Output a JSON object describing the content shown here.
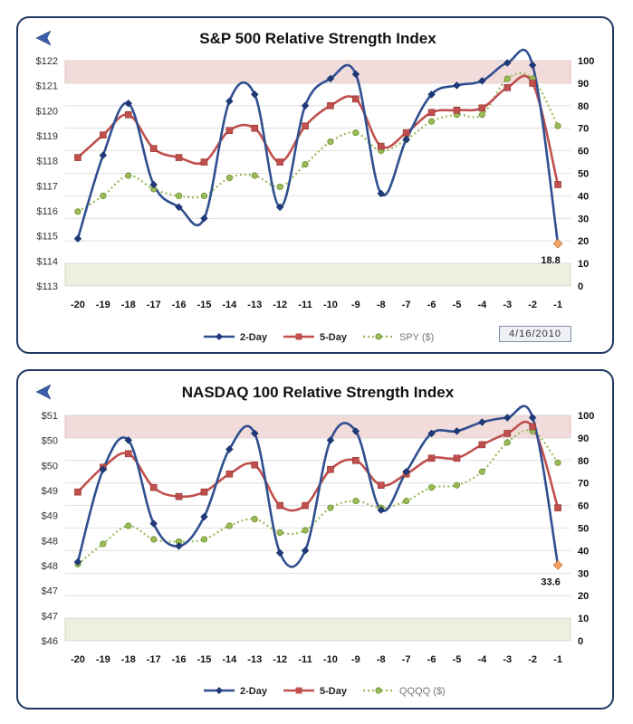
{
  "chart_data": [
    {
      "type": "line",
      "title": "S&P 500 Relative Strength Index",
      "categories": [
        "-20",
        "-19",
        "-18",
        "-17",
        "-16",
        "-15",
        "-14",
        "-13",
        "-12",
        "-11",
        "-10",
        "-9",
        "-8",
        "-7",
        "-6",
        "-5",
        "-4",
        "-3",
        "-2",
        "-1"
      ],
      "left_axis": {
        "range": [
          113,
          122
        ],
        "ticks": [
          "$113",
          "$114",
          "$115",
          "$116",
          "$117",
          "$118",
          "$119",
          "$120",
          "$121",
          "$122"
        ]
      },
      "right_axis": {
        "range": [
          0,
          100
        ],
        "ticks": [
          "0",
          "10",
          "20",
          "30",
          "40",
          "50",
          "60",
          "70",
          "80",
          "90",
          "100"
        ]
      },
      "overbought_band": [
        90,
        100
      ],
      "oversold_band": [
        0,
        10
      ],
      "series": [
        {
          "name": "2-Day",
          "values": [
            21,
            58,
            81,
            45,
            35,
            30,
            82,
            85,
            35,
            80,
            92,
            94,
            41,
            65,
            85,
            89,
            91,
            99,
            98,
            18.8
          ]
        },
        {
          "name": "5-Day",
          "values": [
            57,
            67,
            76,
            61,
            57,
            55,
            69,
            70,
            55,
            71,
            80,
            83,
            62,
            68,
            77,
            78,
            79,
            88,
            90,
            45
          ]
        },
        {
          "name": "SPY ($)",
          "values": [
            33,
            40,
            49,
            43,
            40,
            40,
            48,
            49,
            44,
            54,
            64,
            68,
            60,
            65,
            73,
            76,
            76,
            92,
            92,
            71
          ]
        }
      ],
      "annotation": "18.8",
      "date": "4/16/2010"
    },
    {
      "type": "line",
      "title": "NASDAQ 100 Relative Strength Index",
      "categories": [
        "-20",
        "-19",
        "-18",
        "-17",
        "-16",
        "-15",
        "-14",
        "-13",
        "-12",
        "-11",
        "-10",
        "-9",
        "-8",
        "-7",
        "-6",
        "-5",
        "-4",
        "-3",
        "-2",
        "-1"
      ],
      "left_axis": {
        "range": [
          46,
          51
        ],
        "ticks": [
          "$46",
          "$47",
          "$47",
          "$48",
          "$48",
          "$49",
          "$49",
          "$50",
          "$50",
          "$51"
        ]
      },
      "right_axis": {
        "range": [
          0,
          100
        ],
        "ticks": [
          "0",
          "10",
          "20",
          "30",
          "40",
          "50",
          "60",
          "70",
          "80",
          "90",
          "100"
        ]
      },
      "overbought_band": [
        90,
        100
      ],
      "oversold_band": [
        0,
        10
      ],
      "series": [
        {
          "name": "2-Day",
          "values": [
            35,
            76,
            89,
            52,
            42,
            55,
            85,
            92,
            39,
            40,
            89,
            93,
            58,
            75,
            92,
            93,
            97,
            99,
            99,
            33.6
          ]
        },
        {
          "name": "5-Day",
          "values": [
            66,
            77,
            83,
            68,
            64,
            66,
            74,
            78,
            60,
            60,
            76,
            80,
            69,
            74,
            81,
            81,
            87,
            92,
            95,
            59
          ]
        },
        {
          "name": "QQQQ ($)",
          "values": [
            34,
            43,
            51,
            45,
            44,
            45,
            51,
            54,
            48,
            49,
            59,
            62,
            59,
            62,
            68,
            69,
            75,
            88,
            93,
            79
          ]
        }
      ],
      "annotation": "33.6"
    }
  ],
  "colors": {
    "two_day": "#2f4f8f",
    "two_day_marker": "#1f3a7a",
    "five_day": "#c0504d",
    "five_day_marker": "#c0504d",
    "spy": "#9bbb59",
    "spy_marker": "#6f8f2f",
    "last_marker": "#f0a060",
    "overbought": "#f2dcdb",
    "oversold": "#ebf1de",
    "panel_border": "#1f3864"
  },
  "icons": {
    "back": "back-arrow-icon"
  }
}
